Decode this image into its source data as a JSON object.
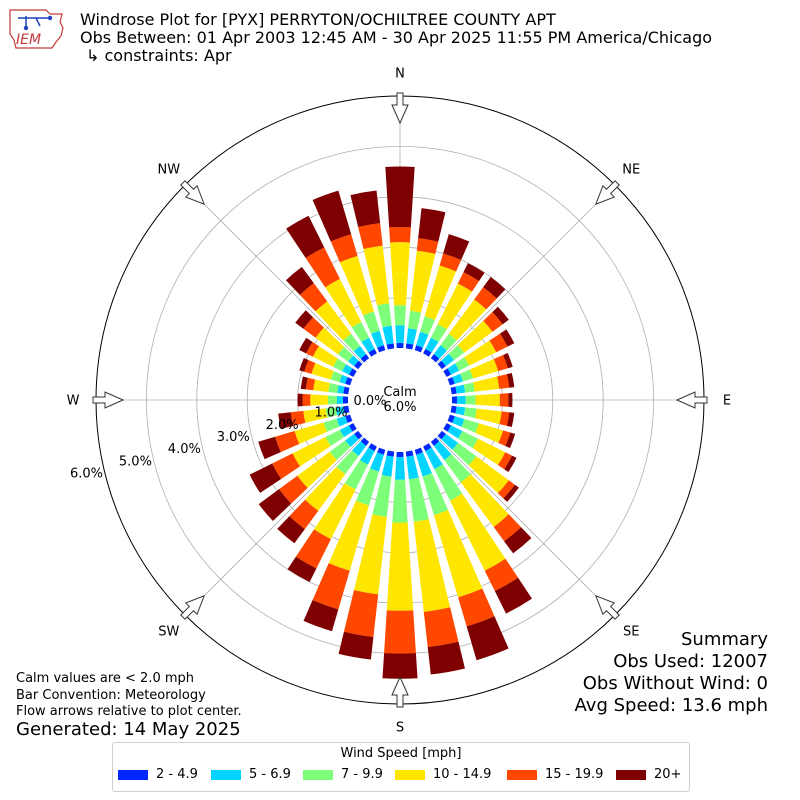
{
  "header": {
    "title": "Windrose Plot for [PYX] PERRYTON/OCHILTREE COUNTY APT",
    "obs_between": "Obs Between: 01 Apr 2003 12:45 AM - 30 Apr 2025 11:55 PM America/Chicago",
    "constraints": "↳ constraints: Apr"
  },
  "logo": {
    "text": "IEM"
  },
  "notes": {
    "calm_note": "Calm values are < 2.0 mph",
    "bar_convention": "Bar Convention: Meteorology",
    "flow_arrows": "Flow arrows relative to plot center.",
    "generated": "Generated: 14 May 2025"
  },
  "summary": {
    "title": "Summary",
    "obs_used": "Obs Used: 12007",
    "obs_without_wind": "Obs Without Wind: 0",
    "avg_speed": "Avg Speed: 13.6 mph"
  },
  "chart_data": {
    "type": "windrose",
    "calm_label": "Calm",
    "calm_value": "6.0%",
    "compass_labels": [
      "N",
      "NE",
      "E",
      "SE",
      "S",
      "SW",
      "W",
      "NW"
    ],
    "radial_tick_labels": [
      "0.0%",
      "1.0%",
      "2.0%",
      "3.0%",
      "4.0%",
      "5.0%",
      "6.0%"
    ],
    "radial_max": 6.0,
    "calm_offset": 1.0,
    "legend_title": "Wind Speed [mph]",
    "bins": [
      {
        "label": "2 - 4.9",
        "color": "#0027ff"
      },
      {
        "label": "5 - 6.9",
        "color": "#00d4ff"
      },
      {
        "label": "7 - 9.9",
        "color": "#7dff7a"
      },
      {
        "label": "10 - 14.9",
        "color": "#ffe600"
      },
      {
        "label": "15 - 19.9",
        "color": "#ff4700"
      },
      {
        "label": "20+",
        "color": "#7f0000"
      }
    ],
    "directions": [
      0,
      10,
      20,
      30,
      40,
      50,
      60,
      70,
      80,
      90,
      100,
      110,
      120,
      130,
      140,
      150,
      160,
      170,
      180,
      190,
      200,
      210,
      220,
      230,
      240,
      250,
      260,
      270,
      280,
      290,
      300,
      310,
      320,
      330,
      340,
      350
    ],
    "cumulative_percent": [
      [
        0.1,
        0.45,
        0.85,
        2.1,
        2.4,
        3.6
      ],
      [
        0.1,
        0.4,
        0.75,
        1.95,
        2.2,
        2.8
      ],
      [
        0.1,
        0.38,
        0.7,
        1.75,
        2.0,
        2.4
      ],
      [
        0.1,
        0.35,
        0.65,
        1.55,
        1.8,
        2.0
      ],
      [
        0.1,
        0.32,
        0.6,
        1.45,
        1.75,
        2.0
      ],
      [
        0.1,
        0.3,
        0.55,
        1.25,
        1.5,
        1.65
      ],
      [
        0.1,
        0.28,
        0.5,
        1.1,
        1.35,
        1.5
      ],
      [
        0.1,
        0.27,
        0.48,
        1.0,
        1.2,
        1.3
      ],
      [
        0.1,
        0.27,
        0.46,
        0.95,
        1.15,
        1.25
      ],
      [
        0.1,
        0.27,
        0.47,
        0.95,
        1.12,
        1.2
      ],
      [
        0.1,
        0.27,
        0.5,
        1.0,
        1.15,
        1.25
      ],
      [
        0.1,
        0.3,
        0.6,
        1.1,
        1.25,
        1.35
      ],
      [
        0.1,
        0.35,
        0.7,
        1.3,
        1.45,
        1.55
      ],
      [
        0.1,
        0.4,
        0.85,
        1.65,
        1.8,
        1.9
      ],
      [
        0.1,
        0.45,
        1.0,
        2.1,
        2.45,
        2.75
      ],
      [
        0.1,
        0.5,
        1.2,
        2.75,
        3.2,
        3.7
      ],
      [
        0.1,
        0.55,
        1.35,
        3.05,
        3.65,
        4.35
      ],
      [
        0.1,
        0.55,
        1.4,
        3.2,
        3.9,
        4.45
      ],
      [
        0.1,
        0.55,
        1.4,
        3.15,
        4.0,
        4.5
      ],
      [
        0.1,
        0.5,
        1.3,
        2.85,
        3.7,
        4.15
      ],
      [
        0.1,
        0.45,
        1.15,
        2.5,
        3.3,
        3.75
      ],
      [
        0.1,
        0.4,
        0.95,
        2.05,
        2.7,
        3.0
      ],
      [
        0.1,
        0.35,
        0.8,
        1.7,
        2.15,
        2.5
      ],
      [
        0.1,
        0.32,
        0.7,
        1.5,
        1.95,
        2.45
      ],
      [
        0.1,
        0.3,
        0.62,
        1.35,
        1.8,
        2.3
      ],
      [
        0.1,
        0.28,
        0.55,
        1.15,
        1.55,
        1.9
      ],
      [
        0.1,
        0.25,
        0.45,
        0.9,
        1.15,
        1.4
      ],
      [
        0.1,
        0.22,
        0.4,
        0.75,
        0.9,
        1.0
      ],
      [
        0.1,
        0.22,
        0.4,
        0.7,
        0.85,
        0.95
      ],
      [
        0.1,
        0.22,
        0.4,
        0.8,
        0.95,
        1.05
      ],
      [
        0.1,
        0.25,
        0.45,
        0.9,
        1.05,
        1.2
      ],
      [
        0.1,
        0.25,
        0.5,
        1.05,
        1.35,
        1.55
      ],
      [
        0.1,
        0.3,
        0.6,
        1.4,
        1.85,
        2.25
      ],
      [
        0.1,
        0.35,
        0.7,
        1.65,
        2.35,
        3.05
      ],
      [
        0.1,
        0.4,
        0.8,
        1.95,
        2.4,
        3.3
      ],
      [
        0.1,
        0.45,
        0.9,
        2.05,
        2.5,
        3.15
      ]
    ]
  }
}
